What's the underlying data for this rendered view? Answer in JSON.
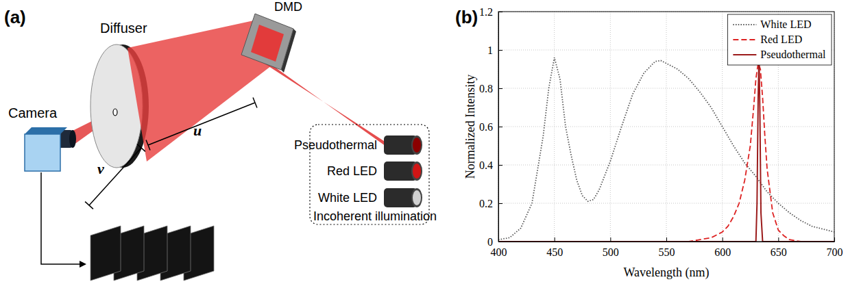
{
  "diagram": {
    "panel_label": "(a)",
    "components": {
      "diffuser": "Diffuser",
      "dmd": "DMD",
      "camera": "Camera"
    },
    "distances": {
      "u": "u",
      "v": "v"
    },
    "sources": [
      "Pseudothermal",
      "Red LED",
      "White LED"
    ],
    "sources_title": "Incoherent illumination"
  },
  "chart_data": {
    "type": "line",
    "panel_label": "(b)",
    "x_label": "Wavelength (nm)",
    "y_label": "Normalized Intensity",
    "xlim": [
      400,
      700
    ],
    "xticks": [
      400,
      450,
      500,
      550,
      600,
      650,
      700
    ],
    "ylim": [
      0,
      1.2
    ],
    "yticks": [
      0,
      0.2,
      0.4,
      0.6,
      0.8,
      1,
      1.2
    ],
    "grid": true,
    "legend": "upper right",
    "series": [
      {
        "name": "White LED",
        "color": "#555555",
        "line_style": "dotted",
        "x": [
          400,
          410,
          420,
          430,
          440,
          445,
          450,
          455,
          460,
          465,
          470,
          475,
          480,
          485,
          490,
          500,
          510,
          520,
          530,
          540,
          545,
          550,
          560,
          570,
          580,
          590,
          600,
          610,
          620,
          630,
          640,
          650,
          660,
          670,
          680,
          690,
          700
        ],
        "values": [
          0.01,
          0.02,
          0.07,
          0.2,
          0.55,
          0.8,
          0.96,
          0.85,
          0.6,
          0.45,
          0.32,
          0.24,
          0.21,
          0.22,
          0.27,
          0.42,
          0.6,
          0.77,
          0.88,
          0.94,
          0.945,
          0.93,
          0.9,
          0.85,
          0.78,
          0.7,
          0.6,
          0.5,
          0.41,
          0.34,
          0.26,
          0.2,
          0.15,
          0.11,
          0.08,
          0.065,
          0.05
        ]
      },
      {
        "name": "Red LED",
        "color": "#dd2222",
        "line_style": "dashed",
        "x": [
          400,
          570,
          580,
          590,
          600,
          605,
          610,
          615,
          620,
          625,
          628,
          630,
          632,
          634,
          636,
          638,
          640,
          645,
          650,
          655,
          660,
          670,
          700
        ],
        "values": [
          0,
          0,
          0.01,
          0.02,
          0.05,
          0.08,
          0.13,
          0.2,
          0.32,
          0.5,
          0.7,
          0.85,
          0.93,
          0.9,
          0.75,
          0.55,
          0.38,
          0.15,
          0.06,
          0.03,
          0.01,
          0,
          0
        ]
      },
      {
        "name": "Pseudothermal",
        "color": "#9b1b1b",
        "line_style": "solid",
        "x": [
          400,
          630,
          631,
          632,
          632.8,
          633.5,
          634.5,
          636,
          700
        ],
        "values": [
          0,
          0,
          0.2,
          0.75,
          0.97,
          0.7,
          0.15,
          0,
          0
        ]
      }
    ]
  }
}
